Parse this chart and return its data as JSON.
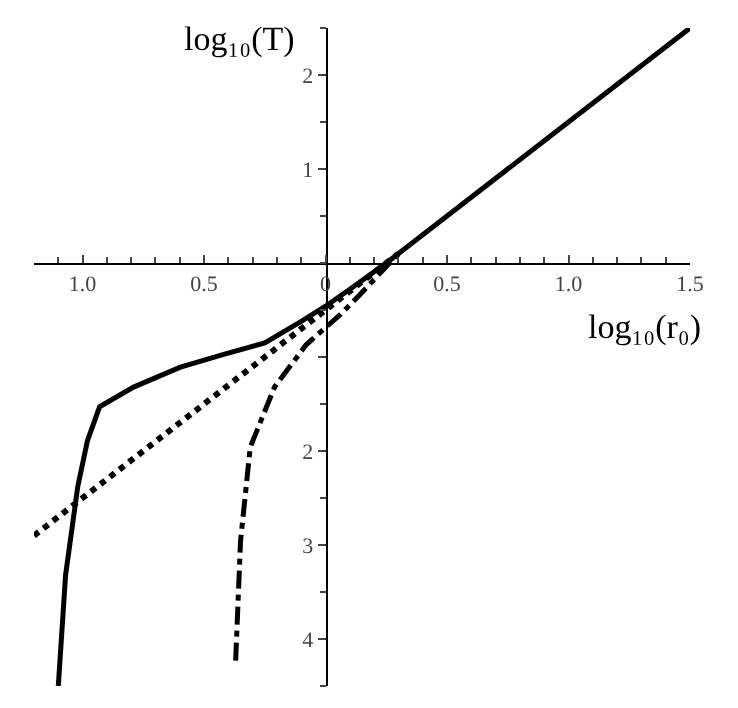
{
  "chart_data": {
    "type": "line",
    "xlabel": "log₁₀(r₀)",
    "ylabel": "log₁₀(T)",
    "xlim": [
      -1.2,
      1.5
    ],
    "ylim": [
      -4.5,
      2.5
    ],
    "xticks": [
      {
        "value": -1.0,
        "label": "1.0"
      },
      {
        "value": -0.5,
        "label": "0.5"
      },
      0,
      0.5,
      {
        "value": 1.0,
        "label": "1.0"
      },
      1.5
    ],
    "yticks": [
      {
        "value": -4,
        "label": "4"
      },
      {
        "value": -3,
        "label": "3"
      },
      {
        "value": -2,
        "label": "2"
      },
      {
        "value": -1,
        "label": null
      },
      1,
      2
    ],
    "grid": false,
    "marker": "none",
    "series": [
      {
        "color": "#000000",
        "line_style": "solid",
        "x": [
          -1.1,
          -1.07,
          -1.02,
          -0.98,
          -0.93,
          -0.79,
          -0.6,
          -0.43,
          -0.25,
          -0.1,
          0,
          0.1,
          0.25,
          0.5,
          1.0,
          1.5
        ],
        "values": [
          -4.5,
          -3.32,
          -2.38,
          -1.89,
          -1.53,
          -1.32,
          -1.11,
          -0.98,
          -0.85,
          -0.62,
          -0.46,
          -0.28,
          0,
          0.5,
          1.5,
          2.5
        ]
      },
      {
        "color": "#000000",
        "line_style": "dotted",
        "x": [
          -1.2,
          0,
          0.3
        ],
        "values": [
          -2.9,
          -0.5,
          0.1
        ]
      },
      {
        "color": "#000000",
        "line_style": "dashdot",
        "x": [
          -0.37,
          -0.35,
          -0.31,
          -0.21,
          -0.08,
          0.06,
          0.14,
          0.3
        ],
        "values": [
          -4.23,
          -2.96,
          -1.96,
          -1.32,
          -0.87,
          -0.55,
          -0.34,
          0.1
        ]
      }
    ]
  }
}
